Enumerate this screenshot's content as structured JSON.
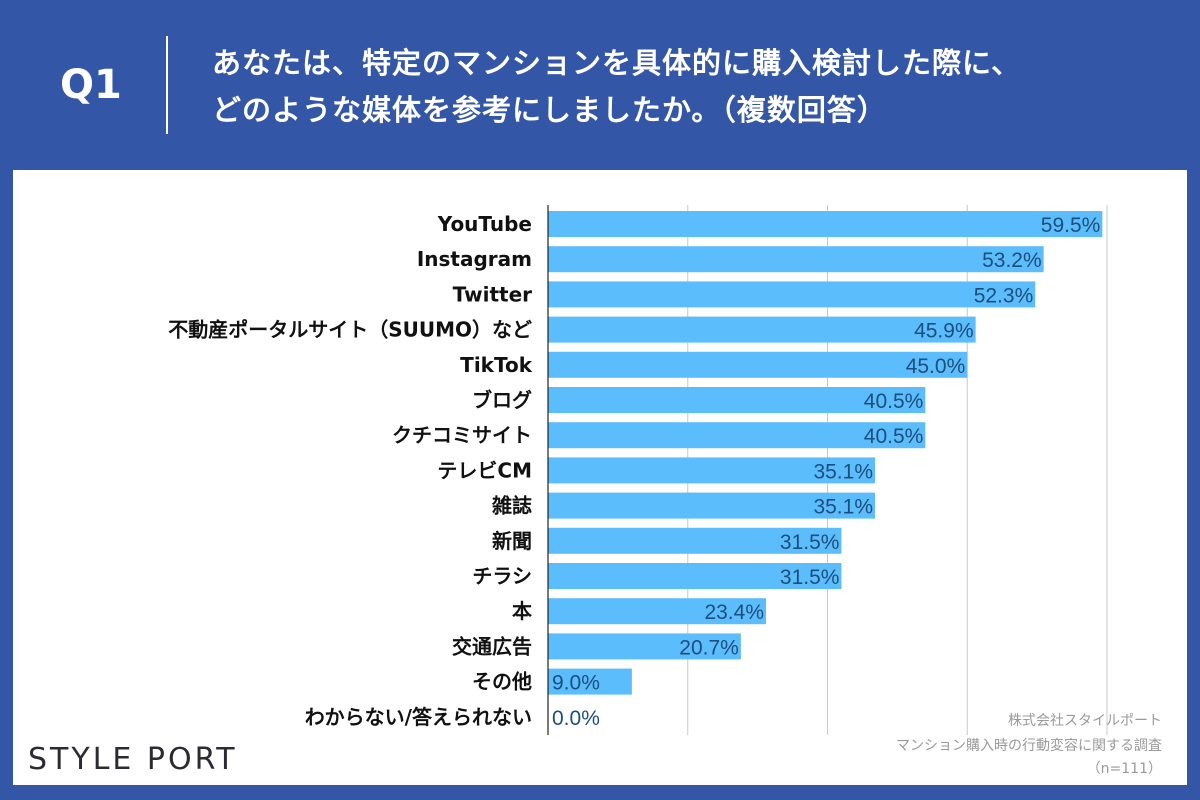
{
  "header": {
    "question_no": "Q1",
    "title_line1": "あなたは、特定のマンションを具体的に購入検討した際に、",
    "title_line2": "どのような媒体を参考にしましたか。（複数回答）"
  },
  "footer": {
    "logo": "STYLE PORT",
    "source_company": "株式会社スタイルポート",
    "source_survey": "マンション購入時の行動変容に関する調査",
    "sample": "（n=111）"
  },
  "chart_data": {
    "type": "bar",
    "orientation": "horizontal",
    "categories": [
      "YouTube",
      "Instagram",
      "Twitter",
      "不動産ポータルサイト（SUUMO）など",
      "TikTok",
      "ブログ",
      "クチコミサイト",
      "テレビCM",
      "雑誌",
      "新聞",
      "チラシ",
      "本",
      "交通広告",
      "その他",
      "わからない/答えられない"
    ],
    "values": [
      59.5,
      53.2,
      52.3,
      45.9,
      45.0,
      40.5,
      40.5,
      35.1,
      35.1,
      31.5,
      31.5,
      23.4,
      20.7,
      9.0,
      0.0
    ],
    "labels": [
      "59.5%",
      "53.2%",
      "52.3%",
      "45.9%",
      "45.0%",
      "40.5%",
      "40.5%",
      "35.1%",
      "35.1%",
      "31.5%",
      "31.5%",
      "23.4%",
      "20.7%",
      "9.0%",
      "0.0%"
    ],
    "unit": "%",
    "xlim": [
      0,
      60
    ],
    "gridlines": [
      15,
      30,
      45,
      60
    ],
    "grid": true,
    "bar_color": "#5bbdfc",
    "label_color": "#1c4e7e"
  }
}
